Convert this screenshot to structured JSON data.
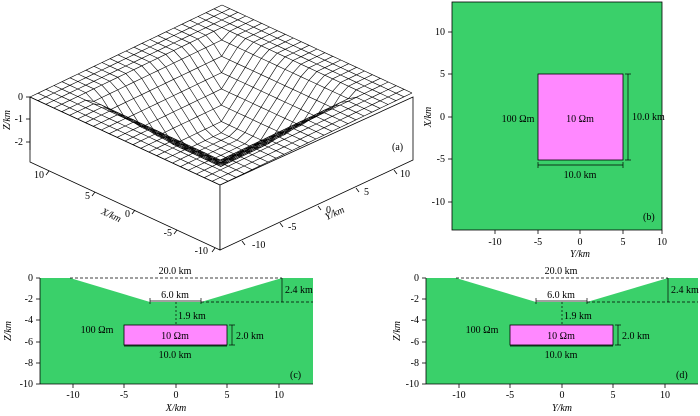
{
  "colors": {
    "halfspace": "#3ad06a",
    "anomaly": "#ff88ff",
    "frame": "#000000",
    "mesh_line": "#000000",
    "mesh_face": "#ffffff"
  },
  "panel_a": {
    "label": "(a)",
    "z_axis_label": "Z/km",
    "x_axis_label": "X/km",
    "y_axis_label": "Y/km",
    "z_ticks": [
      "0",
      "-1",
      "-2"
    ],
    "x_ticks": [
      "10",
      "5",
      "0",
      "-5",
      "-10"
    ],
    "y_ticks": [
      "-10",
      "-5",
      "0",
      "5",
      "10"
    ]
  },
  "panel_b": {
    "label": "(b)",
    "xlabel": "Y/km",
    "ylabel": "X/km",
    "x_ticks": [
      "-10",
      "-5",
      "0",
      "5",
      "10"
    ],
    "y_ticks": [
      "10",
      "5",
      "0",
      "-5",
      "-10"
    ],
    "host_resistivity": "100 Ωm",
    "block_resistivity": "10 Ωm",
    "block_width_label": "10.0 km",
    "block_height_label": "10.0 km"
  },
  "panel_c": {
    "label": "(c)",
    "xlabel": "X/km",
    "ylabel": "Z/km",
    "x_ticks": [
      "-10",
      "-5",
      "0",
      "5",
      "10"
    ],
    "y_ticks": [
      "0",
      "-2",
      "-4",
      "-6",
      "-8",
      "-10"
    ],
    "top_width_label": "20.0 km",
    "basin_depth_label": "2.4 km",
    "bottom_width_label": "6.0 km",
    "gap_label": "1.9 km",
    "host_resistivity": "100 Ωm",
    "block_resistivity": "10 Ωm",
    "block_thickness_label": "2.0 km",
    "block_width_label": "10.0 km"
  },
  "panel_d": {
    "label": "(d)",
    "xlabel": "Y/km",
    "ylabel": "Z/km",
    "x_ticks": [
      "-10",
      "-5",
      "0",
      "5",
      "10"
    ],
    "y_ticks": [
      "0",
      "-2",
      "-4",
      "-6",
      "-8",
      "-10"
    ],
    "top_width_label": "20.0 km",
    "basin_depth_label": "2.4 km",
    "bottom_width_label": "6.0 km",
    "gap_label": "1.9 km",
    "host_resistivity": "100 Ωm",
    "block_resistivity": "10 Ωm",
    "block_thickness_label": "2.0 km",
    "block_width_label": "10.0 km"
  }
}
